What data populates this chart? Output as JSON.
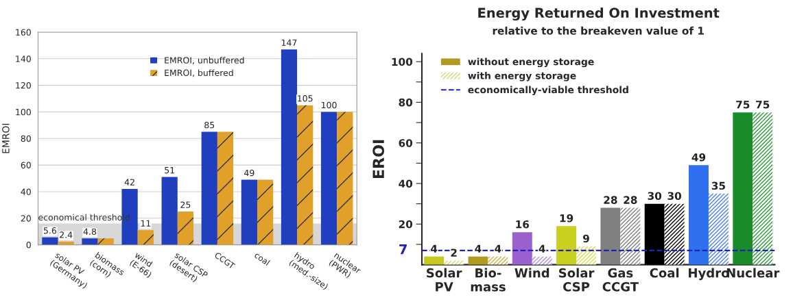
{
  "chart_data": [
    {
      "type": "bar",
      "ylabel": "EMROI",
      "categories": [
        "solar PV\n(Germany)",
        "biomass\n(corn)",
        "wind\n(E-66)",
        "solar CSP\n(desert)",
        "CCGT",
        "coal",
        "hydro\n(med.-size)",
        "nuclear\n(PWR)"
      ],
      "series": [
        {
          "name": "EMROI, unbuffered",
          "color": "#1f3fbf",
          "values": [
            5.6,
            4.8,
            42,
            51,
            85,
            49,
            147,
            100
          ],
          "value_labels": [
            "5.6",
            "4.8",
            "42",
            "51",
            "85",
            "49",
            "147",
            "100"
          ]
        },
        {
          "name": "EMROI, buffered",
          "color": "#e0a02a",
          "values": [
            2.4,
            4.8,
            11,
            25,
            85,
            49,
            105,
            100
          ],
          "value_labels": [
            "2.4",
            null,
            "11",
            "25",
            null,
            null,
            "105",
            null
          ]
        }
      ],
      "ylim": [
        0,
        160
      ],
      "yticks": [
        0,
        20,
        40,
        60,
        80,
        100,
        120,
        140,
        160
      ],
      "grid": "y",
      "legend": "top",
      "bands": [
        {
          "axis": "y",
          "from": 0,
          "to": 16,
          "label": "economical threshold",
          "color": "#b0b0b0"
        }
      ]
    },
    {
      "type": "bar",
      "title": "Energy Returned On Investment",
      "subtitle": "relative to the breakeven value of 1",
      "ylabel": "EROI",
      "categories": [
        "Solar\nPV",
        "Bio-\nmass",
        "Wind",
        "Solar\nCSP",
        "Gas\nCCGT",
        "Coal",
        "Hydro",
        "Nuclear"
      ],
      "series": [
        {
          "name": "without energy storage",
          "color": "#b09a20",
          "colors": [
            "#c8c820",
            "#b09a20",
            "#9a60d0",
            "#c8d020",
            "#808080",
            "#000000",
            "#3070f0",
            "#1a8a2a"
          ],
          "values": [
            4,
            4,
            16,
            19,
            28,
            30,
            49,
            75
          ]
        },
        {
          "name": "with energy storage",
          "color": "#d8d870",
          "colors": [
            "#d8d870",
            "#c8b040",
            "#b090e0",
            "#d8e050",
            "#808080",
            "#000000",
            "#4a80f0",
            "#2a9a3a"
          ],
          "values": [
            2,
            4,
            4,
            9,
            28,
            30,
            35,
            75
          ]
        }
      ],
      "data_labels": true,
      "ylim": [
        0,
        104
      ],
      "yticks": [
        {
          "value": 10,
          "label": null
        },
        20,
        {
          "value": 30,
          "label": null
        },
        40,
        {
          "value": 50,
          "label": null
        },
        60,
        {
          "value": 70,
          "label": null
        },
        80,
        {
          "value": 90,
          "label": null
        },
        100
      ],
      "grid": false,
      "legend": "top left",
      "ref_lines": [
        {
          "axis": "y",
          "value": 7,
          "label": "economically-viable threshold",
          "color": "#2020c0",
          "line_style": "dashed"
        }
      ],
      "annotations": [
        "7"
      ]
    }
  ]
}
